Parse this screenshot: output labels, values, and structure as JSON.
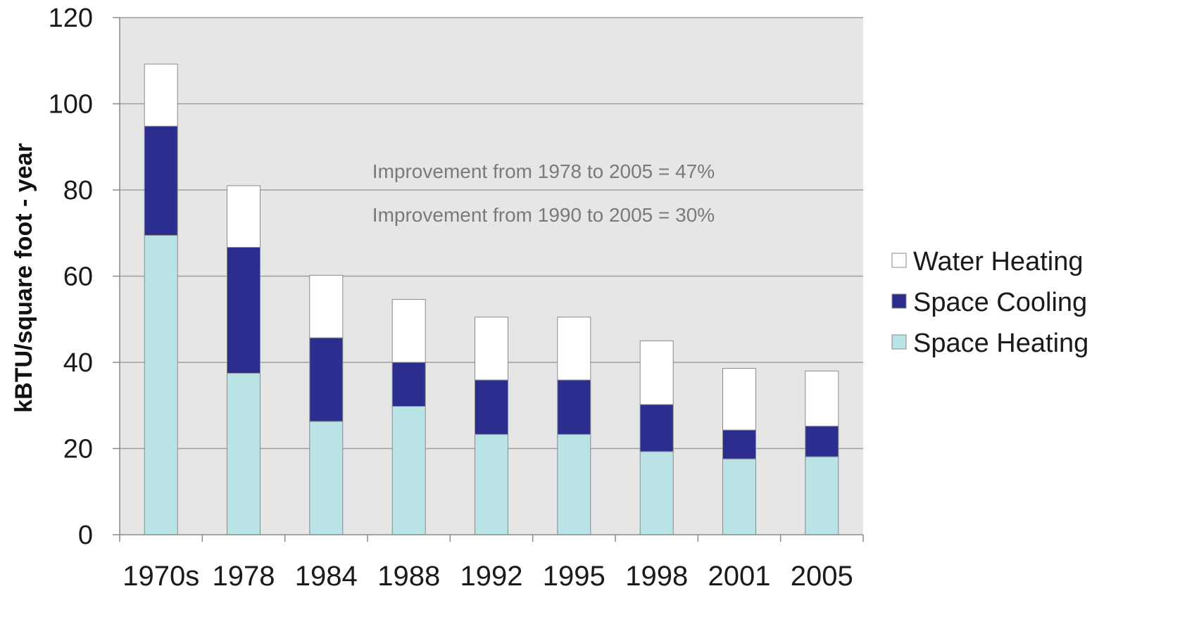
{
  "chart_data": {
    "type": "bar",
    "stacked": true,
    "categories": [
      "1970s",
      "1978",
      "1984",
      "1988",
      "1992",
      "1995",
      "1998",
      "2001",
      "2005"
    ],
    "series": [
      {
        "name": "Space Heating",
        "color": "#b9e3e4",
        "values": [
          69.5,
          37.5,
          26.3,
          29.8,
          23.3,
          23.3,
          19.3,
          17.6,
          18.1
        ]
      },
      {
        "name": "Space Cooling",
        "color": "#2b2e8e",
        "values": [
          25.3,
          29.2,
          19.4,
          10.2,
          12.6,
          12.6,
          10.9,
          6.7,
          7.1
        ]
      },
      {
        "name": "Water Heating",
        "color": "#ffffff",
        "values": [
          14.4,
          14.3,
          14.5,
          14.6,
          14.6,
          14.6,
          14.8,
          14.3,
          12.8
        ]
      }
    ],
    "xlabel": "",
    "ylabel": "kBTU/square foot - year",
    "ylim": [
      0,
      120
    ],
    "yticks": [
      0,
      20,
      40,
      60,
      80,
      100,
      120
    ],
    "grid": true,
    "legend_position": "right",
    "legend_order": [
      "Water Heating",
      "Space Cooling",
      "Space Heating"
    ],
    "annotations": [
      "Improvement from 1978 to 2005 = 47%",
      "Improvement from 1990 to 2005 = 30%"
    ],
    "plot_background": "#e6e6e6"
  }
}
